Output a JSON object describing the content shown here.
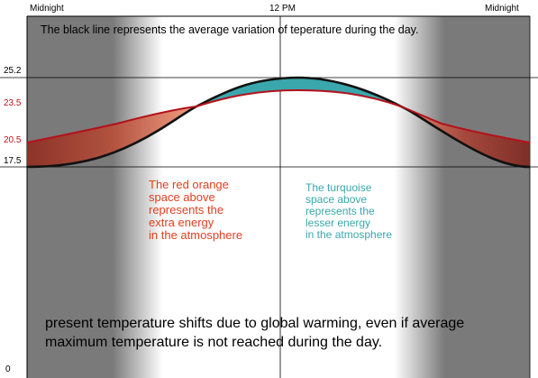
{
  "time_labels": {
    "left": "Midnight",
    "center": "12 PM",
    "right": "Midnight"
  },
  "caption": "The black line represents the average variation of teperature during the day.",
  "y_labels": {
    "v25_2": "25.2",
    "v23_5": "23.5",
    "v20_5": "20.5",
    "v17_5": "17.5",
    "v0": "0"
  },
  "red_note": {
    "lines": [
      "The red orange",
      "space above",
      "represents the",
      "extra energy",
      "in the atmosphere"
    ]
  },
  "turquoise_note": {
    "lines": [
      "The turquoise",
      "space above",
      "represents the",
      "lesser energy",
      "in the atmosphere"
    ]
  },
  "bottom_text": {
    "lines": [
      "present temperature shifts due to global warming, even if average",
      "maximum temperature is not reached during the day."
    ]
  },
  "colors": {
    "night_band": "#7a7a7a",
    "day": "#ffffff",
    "black_line": "#111111",
    "red_line": "#b3121c",
    "red_fill": "#9b3a2e",
    "red_fill_light": "#e88a6e",
    "turquoise_fill": "#3aa7ad",
    "red_text": "#e0401f",
    "turquoise_text": "#3aa7ad",
    "red_label": "#c0101a"
  }
}
